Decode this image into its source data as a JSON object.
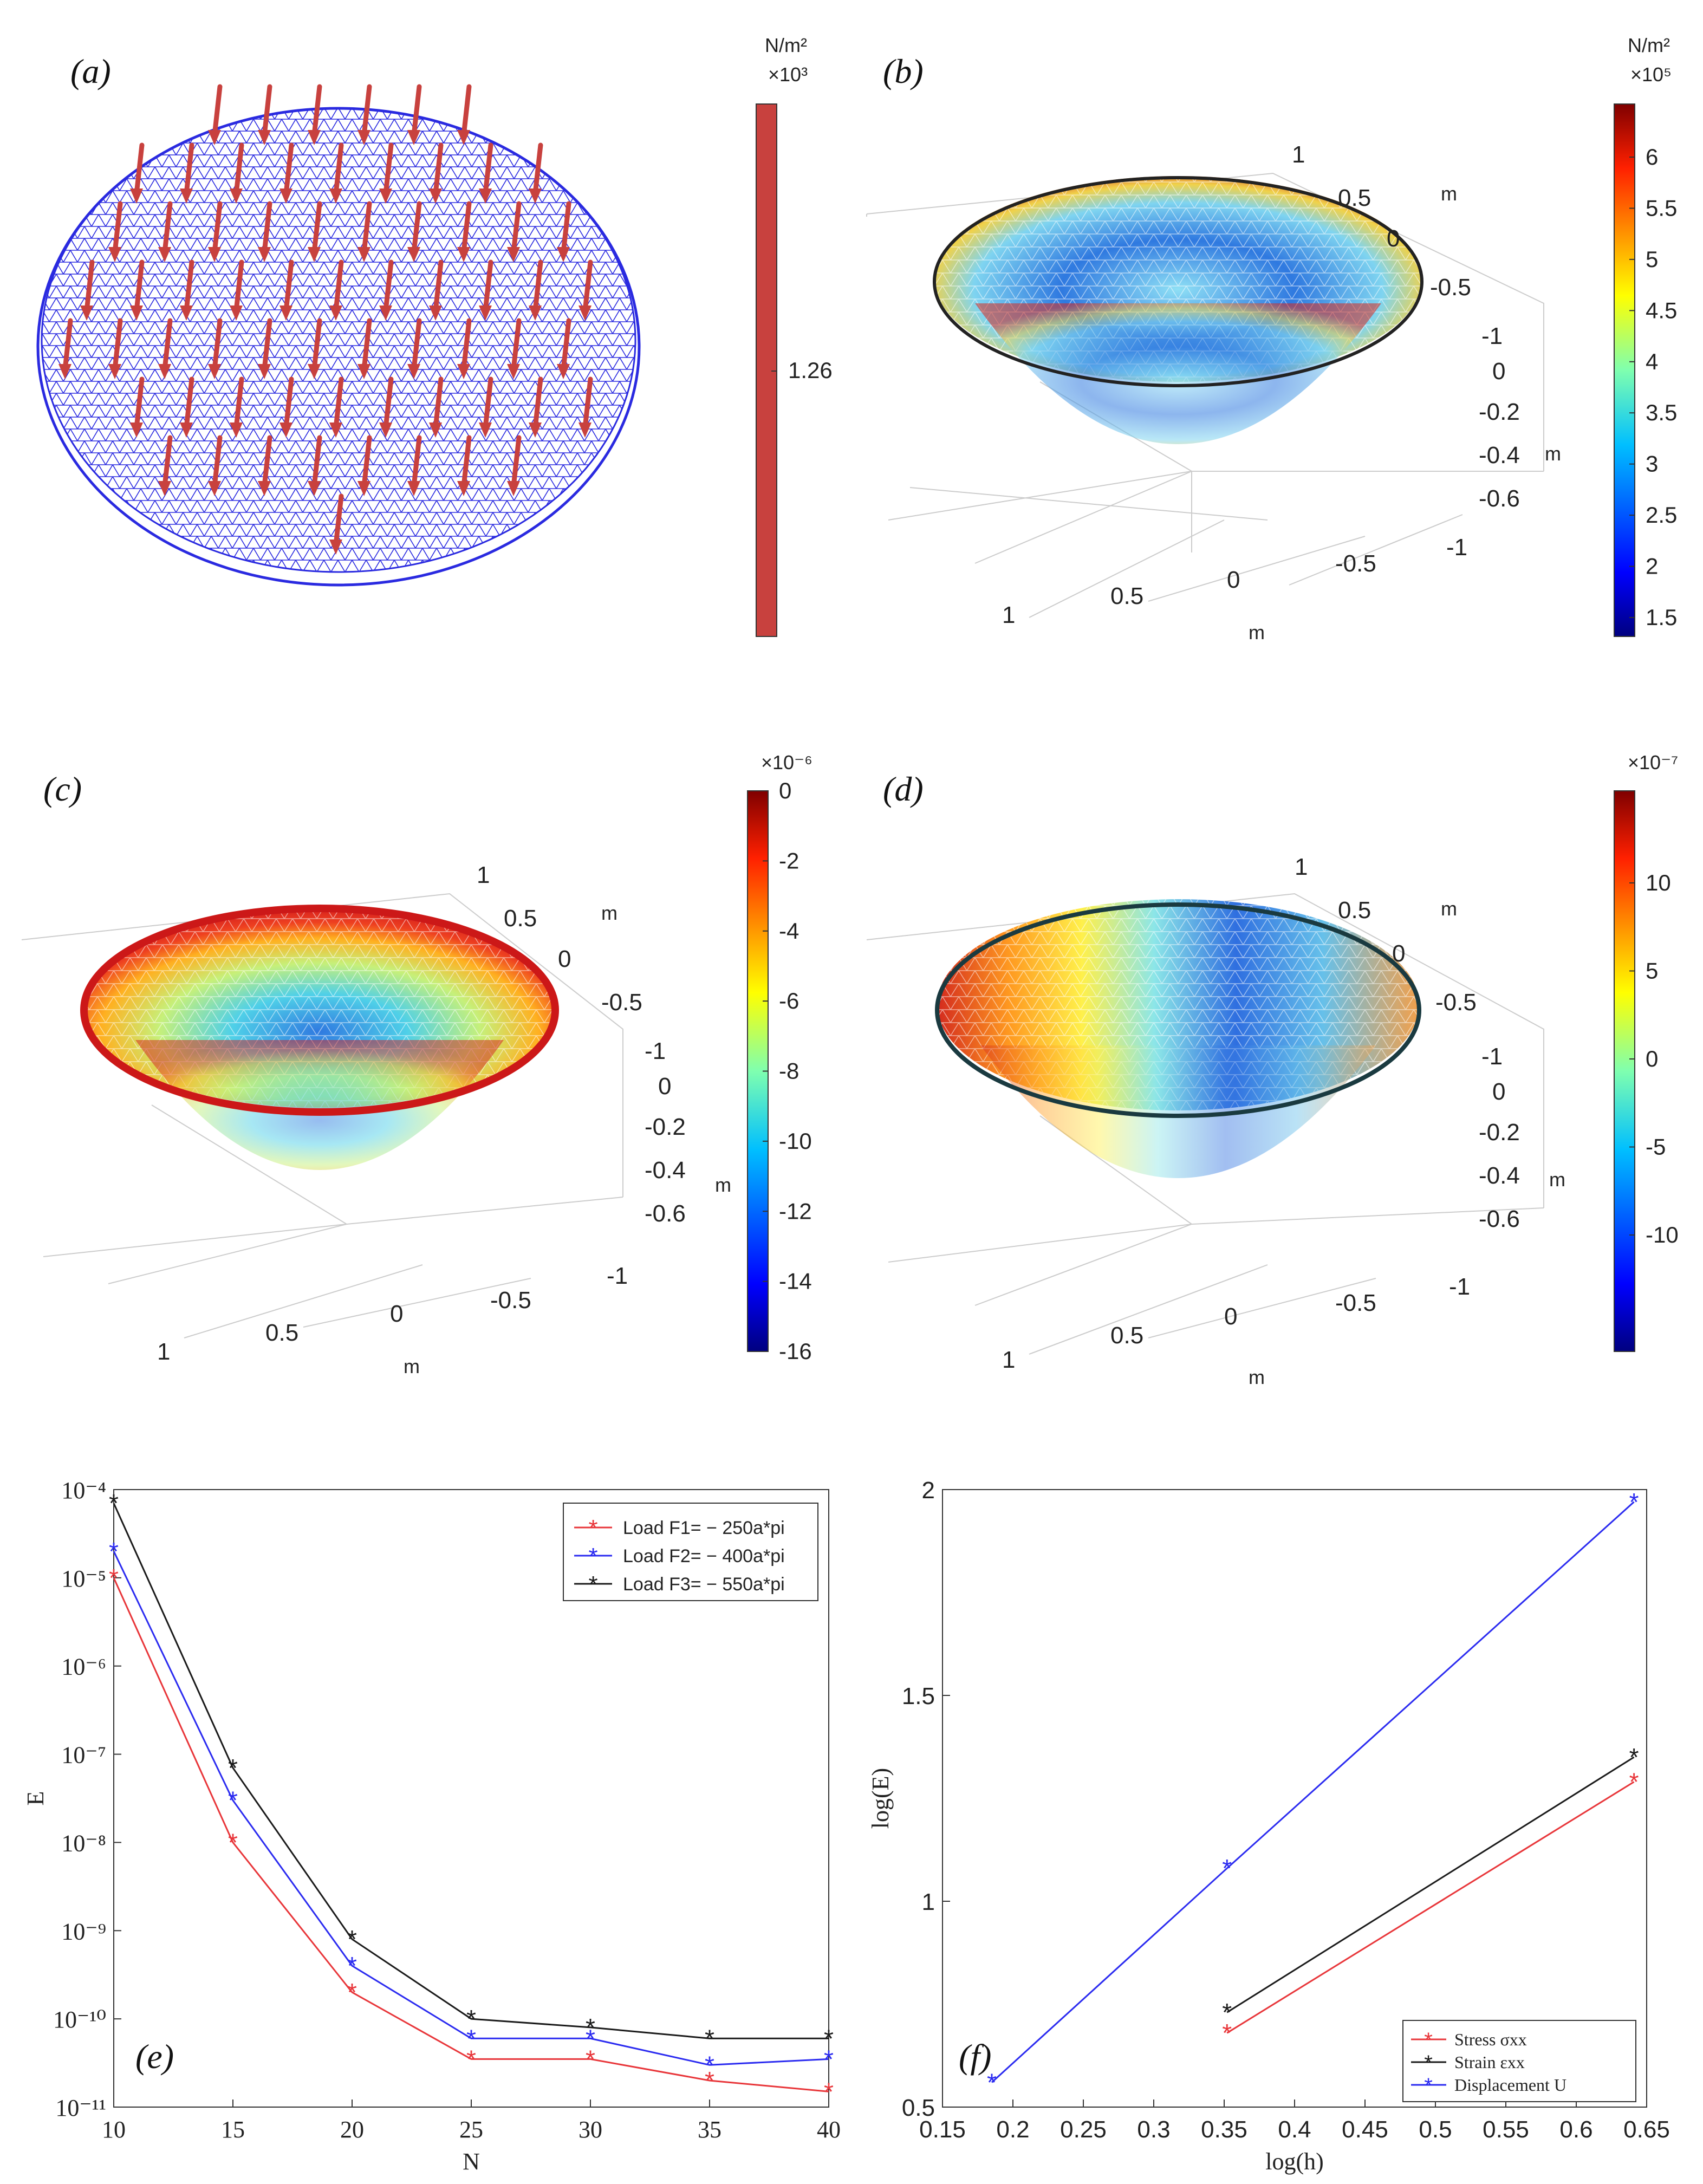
{
  "panels": {
    "a": {
      "label": "(a)",
      "colorbar": {
        "unit": "N/m²",
        "scale": "×10³",
        "value": "1.26",
        "color": "#c8413e"
      }
    },
    "b": {
      "label": "(b)",
      "colorbar": {
        "unit": "N/m²",
        "scale": "×10⁵",
        "ticks": [
          "6",
          "5.5",
          "5",
          "4.5",
          "4",
          "3.5",
          "3",
          "2.5",
          "2",
          "1.5"
        ]
      },
      "axes": {
        "y_ticks": [
          "1",
          "0.5",
          "0",
          "-0.5",
          "-1"
        ],
        "z_ticks": [
          "0",
          "-0.2",
          "-0.4",
          "-0.6"
        ],
        "x_ticks": [
          "1",
          "0.5",
          "0",
          "-0.5",
          "-1"
        ],
        "unit": "m"
      }
    },
    "c": {
      "label": "(c)",
      "colorbar": {
        "scale": "×10⁻⁶",
        "ticks": [
          "0",
          "-2",
          "-4",
          "-6",
          "-8",
          "-10",
          "-12",
          "-14",
          "-16"
        ]
      },
      "axes": {
        "y_ticks": [
          "1",
          "0.5",
          "0",
          "-0.5",
          "-1"
        ],
        "z_ticks": [
          "0",
          "-0.2",
          "-0.4",
          "-0.6"
        ],
        "x_ticks": [
          "1",
          "0.5",
          "0",
          "-0.5",
          "-1"
        ],
        "unit": "m"
      }
    },
    "d": {
      "label": "(d)",
      "colorbar": {
        "scale": "×10⁻⁷",
        "ticks": [
          "10",
          "5",
          "0",
          "-5",
          "-10"
        ]
      },
      "axes": {
        "y_ticks": [
          "1",
          "0.5",
          "0",
          "-0.5",
          "-1"
        ],
        "z_ticks": [
          "0",
          "-0.2",
          "-0.4",
          "-0.6"
        ],
        "x_ticks": [
          "1",
          "0.5",
          "0",
          "-0.5",
          "-1"
        ],
        "unit": "m"
      }
    },
    "e": {
      "label": "(e)"
    },
    "f": {
      "label": "(f)"
    }
  },
  "chart_data": [
    {
      "id": "e",
      "type": "line",
      "xlabel": "N",
      "ylabel": "E",
      "yscale": "log",
      "x": [
        10,
        15,
        20,
        25,
        30,
        35,
        40
      ],
      "xlim": [
        10,
        40
      ],
      "ylim_exp": [
        -11,
        -4
      ],
      "x_ticks": [
        "10",
        "15",
        "20",
        "25",
        "30",
        "35",
        "40"
      ],
      "y_ticks": [
        "10⁻⁴",
        "10⁻⁵",
        "10⁻⁶",
        "10⁻⁷",
        "10⁻⁸",
        "10⁻⁹",
        "10⁻¹⁰",
        "10⁻¹¹"
      ],
      "legend_position": "top-right",
      "series": [
        {
          "name": "Load F1= − 250a*pi",
          "color": "#e8363a",
          "values": [
            1e-05,
            1e-08,
            2e-10,
            3.5e-11,
            3.5e-11,
            2e-11,
            1.5e-11
          ]
        },
        {
          "name": "Load F2= − 400a*pi",
          "color": "#2b2bf0",
          "values": [
            2e-05,
            3e-08,
            4e-10,
            6e-11,
            6e-11,
            3e-11,
            3.5e-11
          ]
        },
        {
          "name": "Load F3= − 550a*pi",
          "color": "#1a1a1a",
          "values": [
            7e-05,
            7e-08,
            8e-10,
            1e-10,
            8e-11,
            6e-11,
            6e-11
          ]
        }
      ]
    },
    {
      "id": "f",
      "type": "line",
      "xlabel": "log(h)",
      "ylabel": "log(E)",
      "xlim": [
        0.15,
        0.65
      ],
      "ylim": [
        0.5,
        2
      ],
      "x_ticks": [
        "0.15",
        "0.2",
        "0.25",
        "0.3",
        "0.35",
        "0.4",
        "0.45",
        "0.5",
        "0.55",
        "0.6",
        "0.65"
      ],
      "y_ticks": [
        "0.5",
        "1",
        "1.5",
        "2"
      ],
      "legend_position": "bottom-right",
      "series": [
        {
          "name": "Stress σxx",
          "color": "#e8363a",
          "x": [
            0.352,
            0.641
          ],
          "values": [
            0.68,
            1.29
          ]
        },
        {
          "name": "Strain εxx",
          "color": "#1a1a1a",
          "x": [
            0.352,
            0.641
          ],
          "values": [
            0.73,
            1.35
          ]
        },
        {
          "name": "Displacement U",
          "color": "#2b2bf0",
          "x": [
            0.185,
            0.352,
            0.641
          ],
          "values": [
            0.56,
            1.08,
            1.97
          ]
        }
      ]
    }
  ]
}
